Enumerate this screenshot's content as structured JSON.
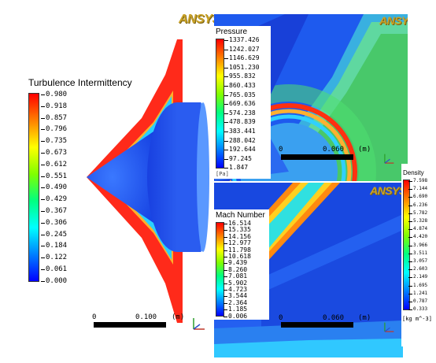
{
  "logo_text": "ANSYS",
  "panel_turbulence": {
    "title": "Turbulence Intermittency",
    "ticks": [
      "0.980",
      "0.918",
      "0.857",
      "0.796",
      "0.735",
      "0.673",
      "0.612",
      "0.551",
      "0.490",
      "0.429",
      "0.367",
      "0.306",
      "0.245",
      "0.184",
      "0.122",
      "0.061",
      "0.000"
    ],
    "scale": {
      "start": "0",
      "end": "0.100",
      "unit": "(m)"
    }
  },
  "panel_pressure": {
    "title": "Pressure",
    "ticks": [
      "1337.426",
      "1242.027",
      "1146.629",
      "1051.230",
      "955.832",
      "860.433",
      "765.035",
      "669.636",
      "574.238",
      "478.839",
      "383.441",
      "288.042",
      "192.644",
      "97.245",
      "1.847"
    ],
    "unit_fragment": "[Pa]",
    "scale": {
      "start": "0",
      "end": "0.060",
      "unit": "(m)"
    }
  },
  "panel_mach": {
    "title": "Mach Number",
    "ticks": [
      "16.514",
      "15.335",
      "14.156",
      "12.977",
      "11.798",
      "10.618",
      "9.439",
      "8.260",
      "7.081",
      "5.902",
      "4.723",
      "3.544",
      "2.364",
      "1.185",
      "0.006"
    ],
    "scale": {
      "start": "0",
      "end": "0.060",
      "unit": "(m)"
    }
  },
  "panel_density": {
    "title": "Density",
    "ticks": [
      "7.598",
      "7.144",
      "6.690",
      "6.236",
      "5.782",
      "5.328",
      "4.874",
      "4.420",
      "3.966",
      "3.511",
      "3.057",
      "2.603",
      "2.149",
      "1.695",
      "1.241",
      "0.787",
      "0.333"
    ],
    "unit": "[kg m^-3]"
  },
  "colors": {
    "rainbow_top": "#ff0000",
    "rainbow_bottom": "#0000ff",
    "logo_gold": "#c9a227"
  }
}
